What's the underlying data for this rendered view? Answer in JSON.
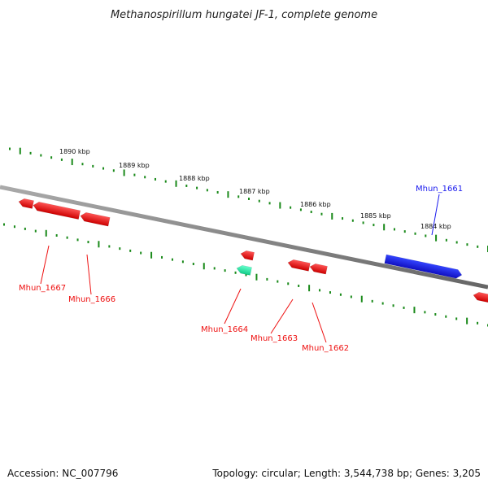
{
  "title": "Methanospirillum hungatei JF-1, complete genome",
  "footer": {
    "accession": "Accession: NC_007796",
    "summary": "Topology: circular; Length: 3,544,738 bp; Genes: 3,205"
  },
  "colors": {
    "forward_gene": "#1a1aee",
    "reverse_gene": "#ee1111",
    "highlight_gene": "#22dd99",
    "backbone": "#888888",
    "ticks": "#1a8a1a"
  },
  "scale_labels": [
    "1890 kbp",
    "1889 kbp",
    "1888 kbp",
    "1887 kbp",
    "1886 kbp",
    "1885 kbp",
    "1884 kbp"
  ],
  "genes": [
    {
      "id": "Mhun_1667",
      "strand": "reverse"
    },
    {
      "id": "Mhun_1666",
      "strand": "reverse"
    },
    {
      "id": "Mhun_1664",
      "strand": "reverse"
    },
    {
      "id": "Mhun_1663",
      "strand": "reverse"
    },
    {
      "id": "Mhun_1662",
      "strand": "reverse"
    },
    {
      "id": "Mhun_1661",
      "strand": "forward"
    }
  ]
}
